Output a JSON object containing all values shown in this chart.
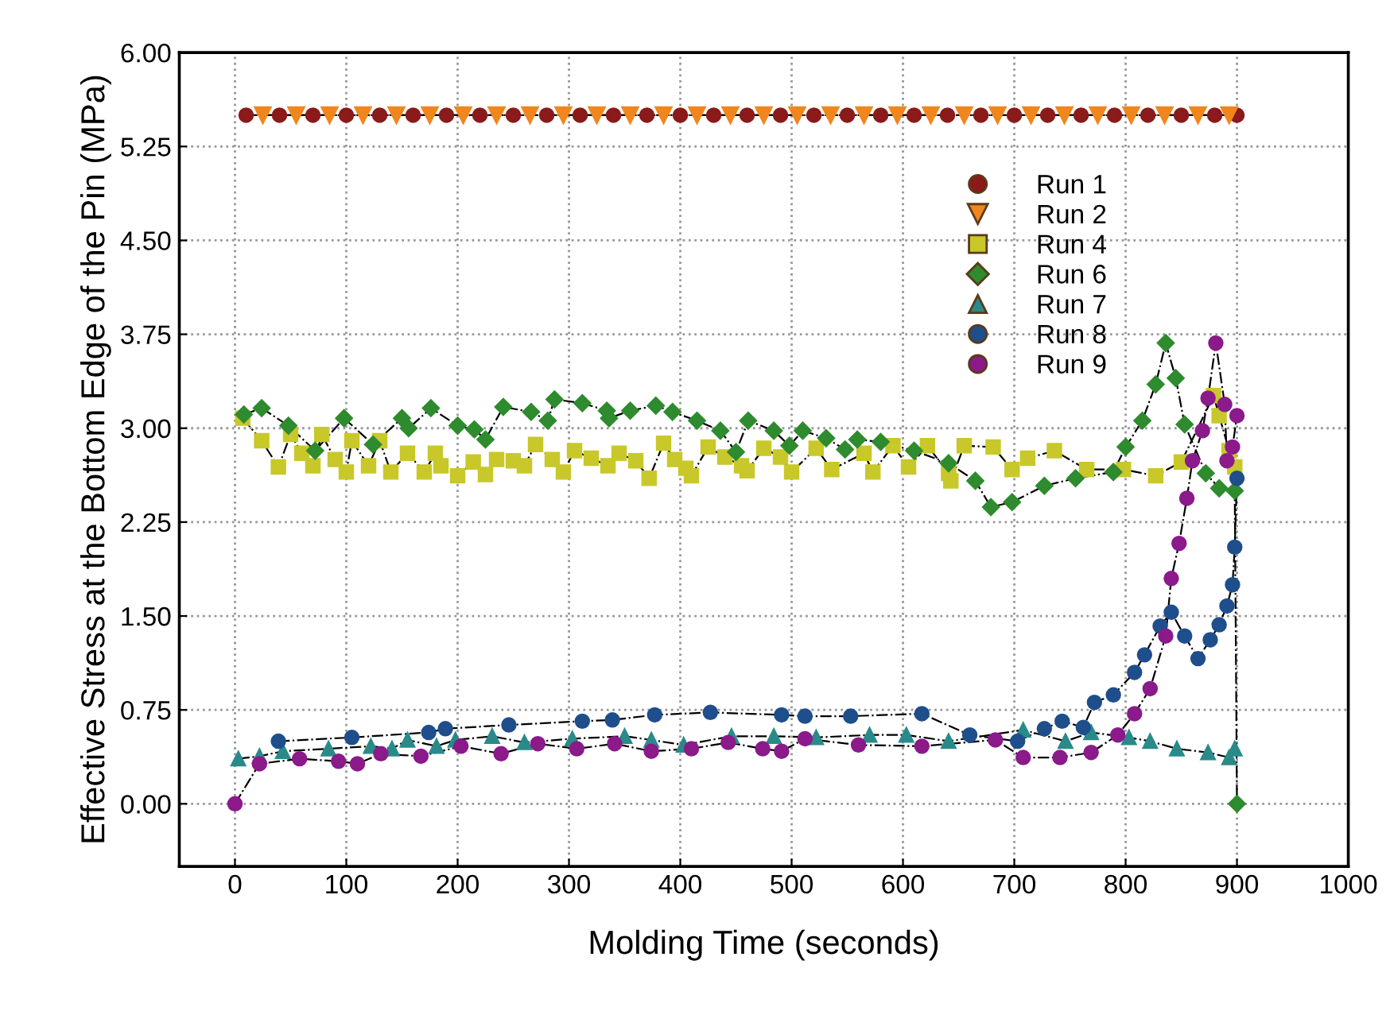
{
  "chart_data": {
    "type": "line",
    "xlabel": "Molding Time (seconds)",
    "ylabel": "Effective Stress at the Bottom Edge of the Pin (MPa)",
    "xlim": [
      -50,
      1000
    ],
    "xticks": [
      0,
      100,
      200,
      300,
      400,
      500,
      600,
      700,
      800,
      900,
      1000
    ],
    "ylim": [
      -0.5,
      6.0
    ],
    "yticks": [
      {
        "value": 0,
        "label": "0.00"
      },
      {
        "value": 0.75,
        "label": "0.75"
      },
      {
        "value": 1.5,
        "label": "1.50"
      },
      {
        "value": 2.25,
        "label": "2.25"
      },
      {
        "value": 3,
        "label": "3.00"
      },
      {
        "value": 3.75,
        "label": "3.75"
      },
      {
        "value": 4.5,
        "label": "4.50"
      },
      {
        "value": 5.25,
        "label": "5.25"
      },
      {
        "value": 6,
        "label": "6.00"
      }
    ],
    "grid": true,
    "legend": "top right",
    "line_style": "dashed",
    "series": [
      {
        "name": "Run 1",
        "color": "#8b1a1a",
        "marker": "circle",
        "x": [
          10,
          40,
          70,
          100,
          130,
          160,
          190,
          220,
          250,
          280,
          310,
          340,
          370,
          400,
          430,
          460,
          490,
          520,
          550,
          580,
          610,
          640,
          670,
          700,
          730,
          760,
          790,
          820,
          850,
          880,
          900
        ],
        "values": [
          5.5,
          5.5,
          5.5,
          5.5,
          5.5,
          5.5,
          5.5,
          5.5,
          5.5,
          5.5,
          5.5,
          5.5,
          5.5,
          5.5,
          5.5,
          5.5,
          5.5,
          5.5,
          5.5,
          5.5,
          5.5,
          5.5,
          5.5,
          5.5,
          5.5,
          5.5,
          5.5,
          5.5,
          5.5,
          5.5,
          5.5
        ]
      },
      {
        "name": "Run 2",
        "color": "#f0861e",
        "marker": "triangle_down",
        "x": [
          25,
          55,
          85,
          115,
          145,
          175,
          205,
          235,
          265,
          295,
          325,
          355,
          385,
          415,
          445,
          475,
          505,
          535,
          565,
          595,
          625,
          655,
          685,
          715,
          745,
          775,
          805,
          835,
          865,
          893
        ],
        "values": [
          5.5,
          5.5,
          5.5,
          5.5,
          5.5,
          5.5,
          5.5,
          5.5,
          5.5,
          5.5,
          5.5,
          5.5,
          5.5,
          5.5,
          5.5,
          5.5,
          5.5,
          5.5,
          5.5,
          5.5,
          5.5,
          5.5,
          5.5,
          5.5,
          5.5,
          5.5,
          5.5,
          5.5,
          5.5,
          5.5
        ]
      },
      {
        "name": "Run 4",
        "color": "#c8c82a",
        "marker": "square",
        "x": [
          7,
          24,
          39,
          50,
          60,
          70,
          78,
          90,
          100,
          105,
          120,
          130,
          140,
          155,
          170,
          180,
          185,
          200,
          214,
          225,
          235,
          250,
          260,
          270,
          285,
          295,
          305,
          320,
          335,
          345,
          360,
          372,
          385,
          395,
          405,
          410,
          425,
          440,
          455,
          460,
          475,
          490,
          500,
          522,
          536,
          565,
          573,
          591,
          605,
          622,
          641,
          643,
          655,
          681,
          698,
          712,
          736,
          765,
          798,
          827,
          850,
          879,
          884,
          893,
          898
        ],
        "values": [
          3.08,
          2.9,
          2.69,
          2.95,
          2.8,
          2.7,
          2.95,
          2.75,
          2.65,
          2.9,
          2.7,
          2.9,
          2.65,
          2.8,
          2.65,
          2.8,
          2.7,
          2.62,
          2.73,
          2.63,
          2.75,
          2.74,
          2.7,
          2.87,
          2.75,
          2.65,
          2.82,
          2.76,
          2.7,
          2.8,
          2.74,
          2.6,
          2.88,
          2.75,
          2.68,
          2.62,
          2.85,
          2.77,
          2.7,
          2.66,
          2.84,
          2.77,
          2.65,
          2.84,
          2.67,
          2.8,
          2.65,
          2.86,
          2.69,
          2.86,
          2.64,
          2.58,
          2.86,
          2.85,
          2.67,
          2.76,
          2.82,
          2.67,
          2.67,
          2.62,
          2.73,
          3.26,
          3.1,
          2.82,
          2.69
        ]
      },
      {
        "name": "Run 6",
        "color": "#2e8b2e",
        "marker": "diamond",
        "x": [
          8,
          24,
          48,
          72,
          98,
          124,
          150,
          156,
          176,
          200,
          215,
          225,
          241,
          266,
          281,
          287,
          312,
          334,
          336,
          355,
          378,
          393,
          415,
          436,
          450,
          461,
          484,
          498,
          510,
          531,
          548,
          559,
          580,
          610,
          641,
          665,
          679,
          698,
          727,
          755,
          789,
          800,
          815,
          827,
          836,
          845,
          853,
          872,
          884,
          898,
          900
        ],
        "values": [
          3.11,
          3.16,
          3.02,
          2.82,
          3.08,
          2.87,
          3.08,
          3.0,
          3.16,
          3.02,
          2.99,
          2.91,
          3.17,
          3.13,
          3.06,
          3.23,
          3.2,
          3.14,
          3.08,
          3.14,
          3.18,
          3.13,
          3.06,
          2.98,
          2.81,
          3.06,
          2.98,
          2.86,
          2.98,
          2.92,
          2.83,
          2.91,
          2.89,
          2.82,
          2.72,
          2.58,
          2.37,
          2.41,
          2.54,
          2.6,
          2.65,
          2.85,
          3.06,
          3.35,
          3.68,
          3.4,
          3.03,
          2.64,
          2.52,
          2.5,
          0.0
        ]
      },
      {
        "name": "Run 7",
        "color": "#2a8a8a",
        "marker": "triangle",
        "x": [
          3,
          22,
          43,
          84,
          122,
          141,
          155,
          181,
          198,
          231,
          260,
          303,
          350,
          374,
          403,
          446,
          484,
          522,
          570,
          603,
          641,
          708,
          746,
          769,
          803,
          822,
          846,
          874,
          893,
          898
        ],
        "values": [
          0.36,
          0.38,
          0.42,
          0.44,
          0.46,
          0.44,
          0.51,
          0.46,
          0.51,
          0.54,
          0.49,
          0.52,
          0.54,
          0.51,
          0.47,
          0.54,
          0.54,
          0.53,
          0.55,
          0.55,
          0.5,
          0.59,
          0.5,
          0.57,
          0.53,
          0.5,
          0.44,
          0.41,
          0.37,
          0.44
        ]
      },
      {
        "name": "Run 8",
        "color": "#1f4e8c",
        "marker": "circle",
        "x": [
          39,
          105,
          174,
          189,
          246,
          312,
          339,
          377,
          427,
          491,
          512,
          553,
          617,
          660,
          703,
          727,
          743,
          762,
          772,
          789,
          808,
          817,
          831,
          841,
          853,
          865,
          876,
          884,
          891,
          896,
          898,
          900
        ],
        "values": [
          0.5,
          0.53,
          0.57,
          0.6,
          0.63,
          0.66,
          0.67,
          0.71,
          0.73,
          0.71,
          0.7,
          0.7,
          0.72,
          0.55,
          0.5,
          0.6,
          0.66,
          0.61,
          0.81,
          0.87,
          1.05,
          1.19,
          1.42,
          1.53,
          1.34,
          1.16,
          1.31,
          1.43,
          1.58,
          1.75,
          2.05,
          2.6
        ]
      },
      {
        "name": "Run 9",
        "color": "#8b1a8b",
        "marker": "circle",
        "x": [
          0,
          22,
          58,
          93,
          110,
          131,
          167,
          203,
          239,
          272,
          307,
          341,
          374,
          410,
          443,
          474,
          491,
          512,
          560,
          617,
          683,
          708,
          741,
          769,
          793,
          808,
          822,
          836,
          841,
          848,
          855,
          860,
          869,
          874,
          881,
          889,
          891,
          896,
          900
        ],
        "values": [
          0.0,
          0.32,
          0.36,
          0.34,
          0.32,
          0.4,
          0.38,
          0.46,
          0.4,
          0.48,
          0.44,
          0.48,
          0.42,
          0.44,
          0.49,
          0.44,
          0.42,
          0.52,
          0.47,
          0.46,
          0.51,
          0.37,
          0.37,
          0.41,
          0.55,
          0.72,
          0.92,
          1.34,
          1.8,
          2.08,
          2.44,
          2.74,
          2.98,
          3.24,
          3.68,
          3.19,
          2.74,
          2.85,
          3.1
        ]
      }
    ]
  }
}
